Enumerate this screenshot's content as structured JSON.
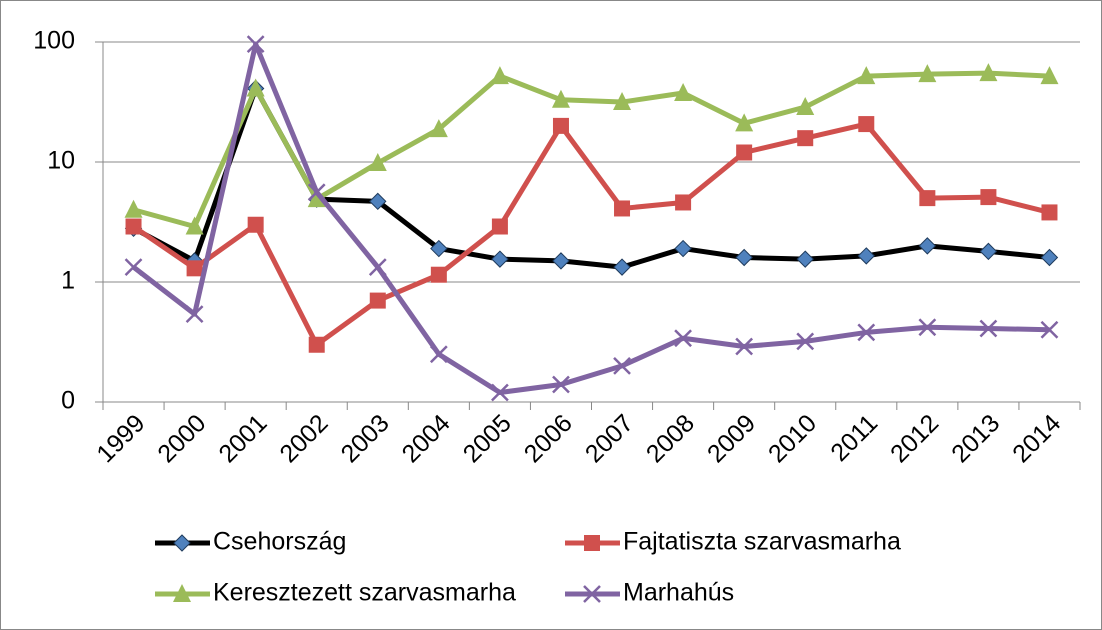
{
  "chart_data": {
    "type": "line",
    "categories": [
      "1999",
      "2000",
      "2001",
      "2002",
      "2003",
      "2004",
      "2005",
      "2006",
      "2007",
      "2008",
      "2009",
      "2010",
      "2011",
      "2012",
      "2013",
      "2014"
    ],
    "series": [
      {
        "name": "Csehország",
        "color": "#000000",
        "marker": "diamond",
        "marker_color": "#4f81bd",
        "values": [
          2.8,
          1.5,
          41,
          4.9,
          4.7,
          1.9,
          1.55,
          1.5,
          1.33,
          1.9,
          1.6,
          1.55,
          1.65,
          2.0,
          1.8,
          1.6
        ]
      },
      {
        "name": "Fajtatiszta szarvasmarha",
        "color": "#d0504d",
        "marker": "square",
        "marker_color": "#d0504d",
        "values": [
          2.9,
          1.3,
          3.0,
          0.3,
          0.7,
          1.15,
          2.9,
          20,
          4.1,
          4.6,
          12,
          15.8,
          20.7,
          5.0,
          5.1,
          3.8
        ]
      },
      {
        "name": "Keresztezett szarvasmarha",
        "color": "#9bbb59",
        "marker": "triangle",
        "marker_color": "#9bbb59",
        "values": [
          4.0,
          2.9,
          41,
          4.9,
          9.8,
          18.8,
          52,
          33,
          31.6,
          37.6,
          21,
          28.7,
          52,
          54,
          55,
          52
        ]
      },
      {
        "name": "Marhahús",
        "color": "#8064a2",
        "marker": "x",
        "marker_color": "#8064a2",
        "values": [
          1.33,
          0.54,
          96,
          5.6,
          1.33,
          0.25,
          0.12,
          0.14,
          0.2,
          0.34,
          0.29,
          0.32,
          0.38,
          0.42,
          0.41,
          0.4
        ]
      }
    ],
    "ylim": [
      0.1,
      100
    ],
    "yticks": [
      {
        "value": 0.1,
        "label": "0"
      },
      1,
      10,
      100
    ],
    "log_scale": true,
    "grid": true,
    "legend": "bottom"
  }
}
